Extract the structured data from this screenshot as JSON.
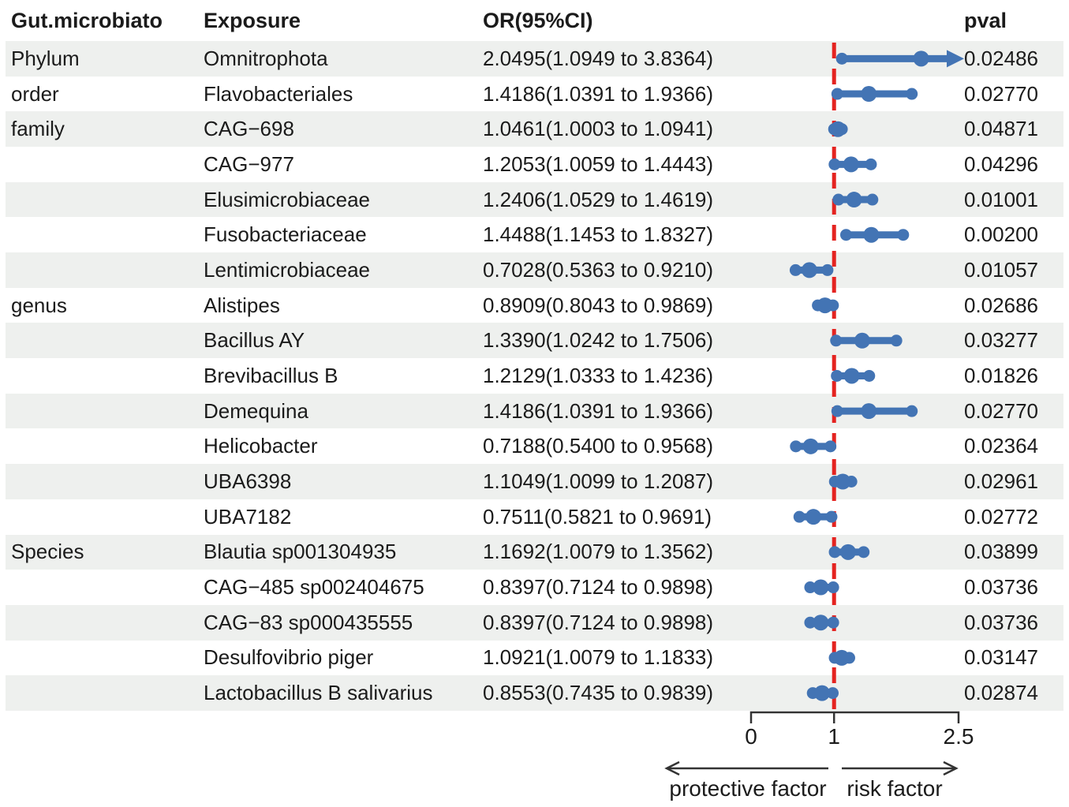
{
  "chart_data": {
    "type": "table",
    "subtype": "forest-plot",
    "columns": [
      "Gut.microbiato",
      "Exposure",
      "OR(95%CI)",
      "pval"
    ],
    "rows": [
      {
        "group": "Phylum",
        "exposure": "Omnitrophota",
        "or_label": "2.0495(1.0949 to 3.8364)",
        "or": 2.0495,
        "lo": 1.0949,
        "hi": 3.8364,
        "pval": "0.02486"
      },
      {
        "group": "order",
        "exposure": "Flavobacteriales",
        "or_label": "1.4186(1.0391 to 1.9366)",
        "or": 1.4186,
        "lo": 1.0391,
        "hi": 1.9366,
        "pval": "0.02770"
      },
      {
        "group": "family",
        "exposure": "CAG−698",
        "or_label": "1.0461(1.0003 to 1.0941)",
        "or": 1.0461,
        "lo": 1.0003,
        "hi": 1.0941,
        "pval": "0.04871"
      },
      {
        "group": "",
        "exposure": "CAG−977",
        "or_label": "1.2053(1.0059 to 1.4443)",
        "or": 1.2053,
        "lo": 1.0059,
        "hi": 1.4443,
        "pval": "0.04296"
      },
      {
        "group": "",
        "exposure": "Elusimicrobiaceae",
        "or_label": "1.2406(1.0529 to 1.4619)",
        "or": 1.2406,
        "lo": 1.0529,
        "hi": 1.4619,
        "pval": "0.01001"
      },
      {
        "group": "",
        "exposure": "Fusobacteriaceae",
        "or_label": "1.4488(1.1453 to 1.8327)",
        "or": 1.4488,
        "lo": 1.1453,
        "hi": 1.8327,
        "pval": "0.00200"
      },
      {
        "group": "",
        "exposure": "Lentimicrobiaceae",
        "or_label": "0.7028(0.5363 to 0.9210)",
        "or": 0.7028,
        "lo": 0.5363,
        "hi": 0.921,
        "pval": "0.01057"
      },
      {
        "group": "genus",
        "exposure": "Alistipes",
        "or_label": "0.8909(0.8043 to 0.9869)",
        "or": 0.8909,
        "lo": 0.8043,
        "hi": 0.9869,
        "pval": "0.02686"
      },
      {
        "group": "",
        "exposure": "Bacillus AY",
        "or_label": "1.3390(1.0242 to 1.7506)",
        "or": 1.339,
        "lo": 1.0242,
        "hi": 1.7506,
        "pval": "0.03277"
      },
      {
        "group": "",
        "exposure": "Brevibacillus B",
        "or_label": "1.2129(1.0333 to 1.4236)",
        "or": 1.2129,
        "lo": 1.0333,
        "hi": 1.4236,
        "pval": "0.01826"
      },
      {
        "group": "",
        "exposure": "Demequina",
        "or_label": "1.4186(1.0391 to 1.9366)",
        "or": 1.4186,
        "lo": 1.0391,
        "hi": 1.9366,
        "pval": "0.02770"
      },
      {
        "group": "",
        "exposure": "Helicobacter",
        "or_label": "0.7188(0.5400 to 0.9568)",
        "or": 0.7188,
        "lo": 0.54,
        "hi": 0.9568,
        "pval": "0.02364"
      },
      {
        "group": "",
        "exposure": "UBA6398",
        "or_label": "1.1049(1.0099 to 1.2087)",
        "or": 1.1049,
        "lo": 1.0099,
        "hi": 1.2087,
        "pval": "0.02961"
      },
      {
        "group": "",
        "exposure": "UBA7182",
        "or_label": "0.7511(0.5821 to 0.9691)",
        "or": 0.7511,
        "lo": 0.5821,
        "hi": 0.9691,
        "pval": "0.02772"
      },
      {
        "group": "Species",
        "exposure": "Blautia sp001304935",
        "or_label": "1.1692(1.0079 to 1.3562)",
        "or": 1.1692,
        "lo": 1.0079,
        "hi": 1.3562,
        "pval": "0.03899"
      },
      {
        "group": "",
        "exposure": "CAG−485 sp002404675",
        "or_label": "0.8397(0.7124 to 0.9898)",
        "or": 0.8397,
        "lo": 0.7124,
        "hi": 0.9898,
        "pval": "0.03736"
      },
      {
        "group": "",
        "exposure": "CAG−83 sp000435555",
        "or_label": "0.8397(0.7124 to 0.9898)",
        "or": 0.8397,
        "lo": 0.7124,
        "hi": 0.9898,
        "pval": "0.03736"
      },
      {
        "group": "",
        "exposure": "Desulfovibrio piger",
        "or_label": "1.0921(1.0079 to 1.1833)",
        "or": 1.0921,
        "lo": 1.0079,
        "hi": 1.1833,
        "pval": "0.03147"
      },
      {
        "group": "",
        "exposure": "Lactobacillus B salivarius",
        "or_label": "0.8553(0.7435 to 0.9839)",
        "or": 0.8553,
        "lo": 0.7435,
        "hi": 0.9839,
        "pval": "0.02874"
      }
    ],
    "axis": {
      "xlim": [
        0,
        2.5
      ],
      "ticks": [
        0,
        1,
        2.5
      ],
      "tick_labels": [
        "0",
        "1",
        "2.5"
      ],
      "ref_line": 1,
      "left_label": "protective factor",
      "right_label": "risk factor",
      "grid": false
    },
    "colors": {
      "bar": "#4374b4",
      "ref_line": "#e42320",
      "stripe": "#eef0ee",
      "axis": "#333333",
      "text": "#1b1b1b"
    }
  }
}
